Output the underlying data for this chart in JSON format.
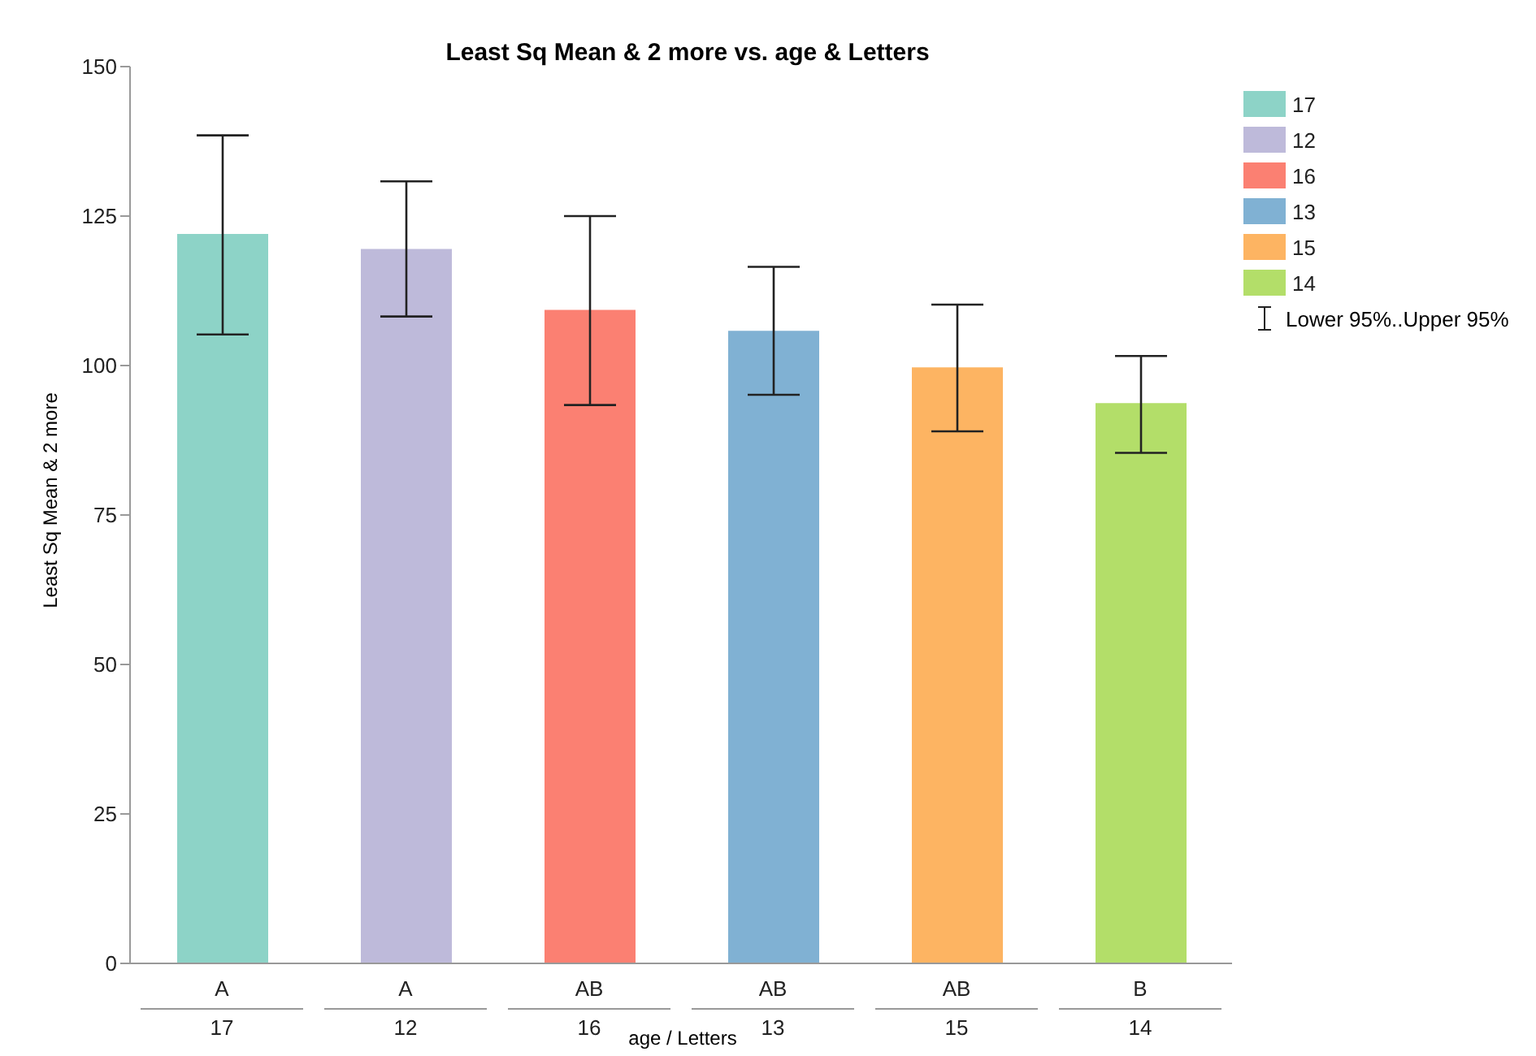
{
  "chart_data": {
    "type": "bar",
    "title": "Least Sq Mean & 2 more vs. age & Letters",
    "xlabel": "age / Letters",
    "ylabel": "Least Sq Mean & 2 more",
    "categories": [
      "17",
      "12",
      "16",
      "13",
      "15",
      "14"
    ],
    "values": [
      122.0,
      119.5,
      109.3,
      105.8,
      99.7,
      93.7
    ],
    "colors": [
      "#8dd3c7",
      "#bebada",
      "#fb8072",
      "#80b1d3",
      "#fdb462",
      "#b3de69"
    ],
    "errors": [
      [
        105.2,
        138.5
      ],
      [
        108.2,
        130.8
      ],
      [
        93.4,
        125.0
      ],
      [
        95.1,
        116.5
      ],
      [
        89.0,
        110.2
      ],
      [
        85.4,
        101.6
      ]
    ],
    "annotations": [
      "A",
      "A",
      "AB",
      "AB",
      "AB",
      "B",
      "Lower 95%..Upper 95%"
    ],
    "ylim": [
      0,
      150
    ],
    "yticks": [
      0,
      25,
      50,
      75,
      100,
      125,
      150
    ],
    "grid": false
  }
}
